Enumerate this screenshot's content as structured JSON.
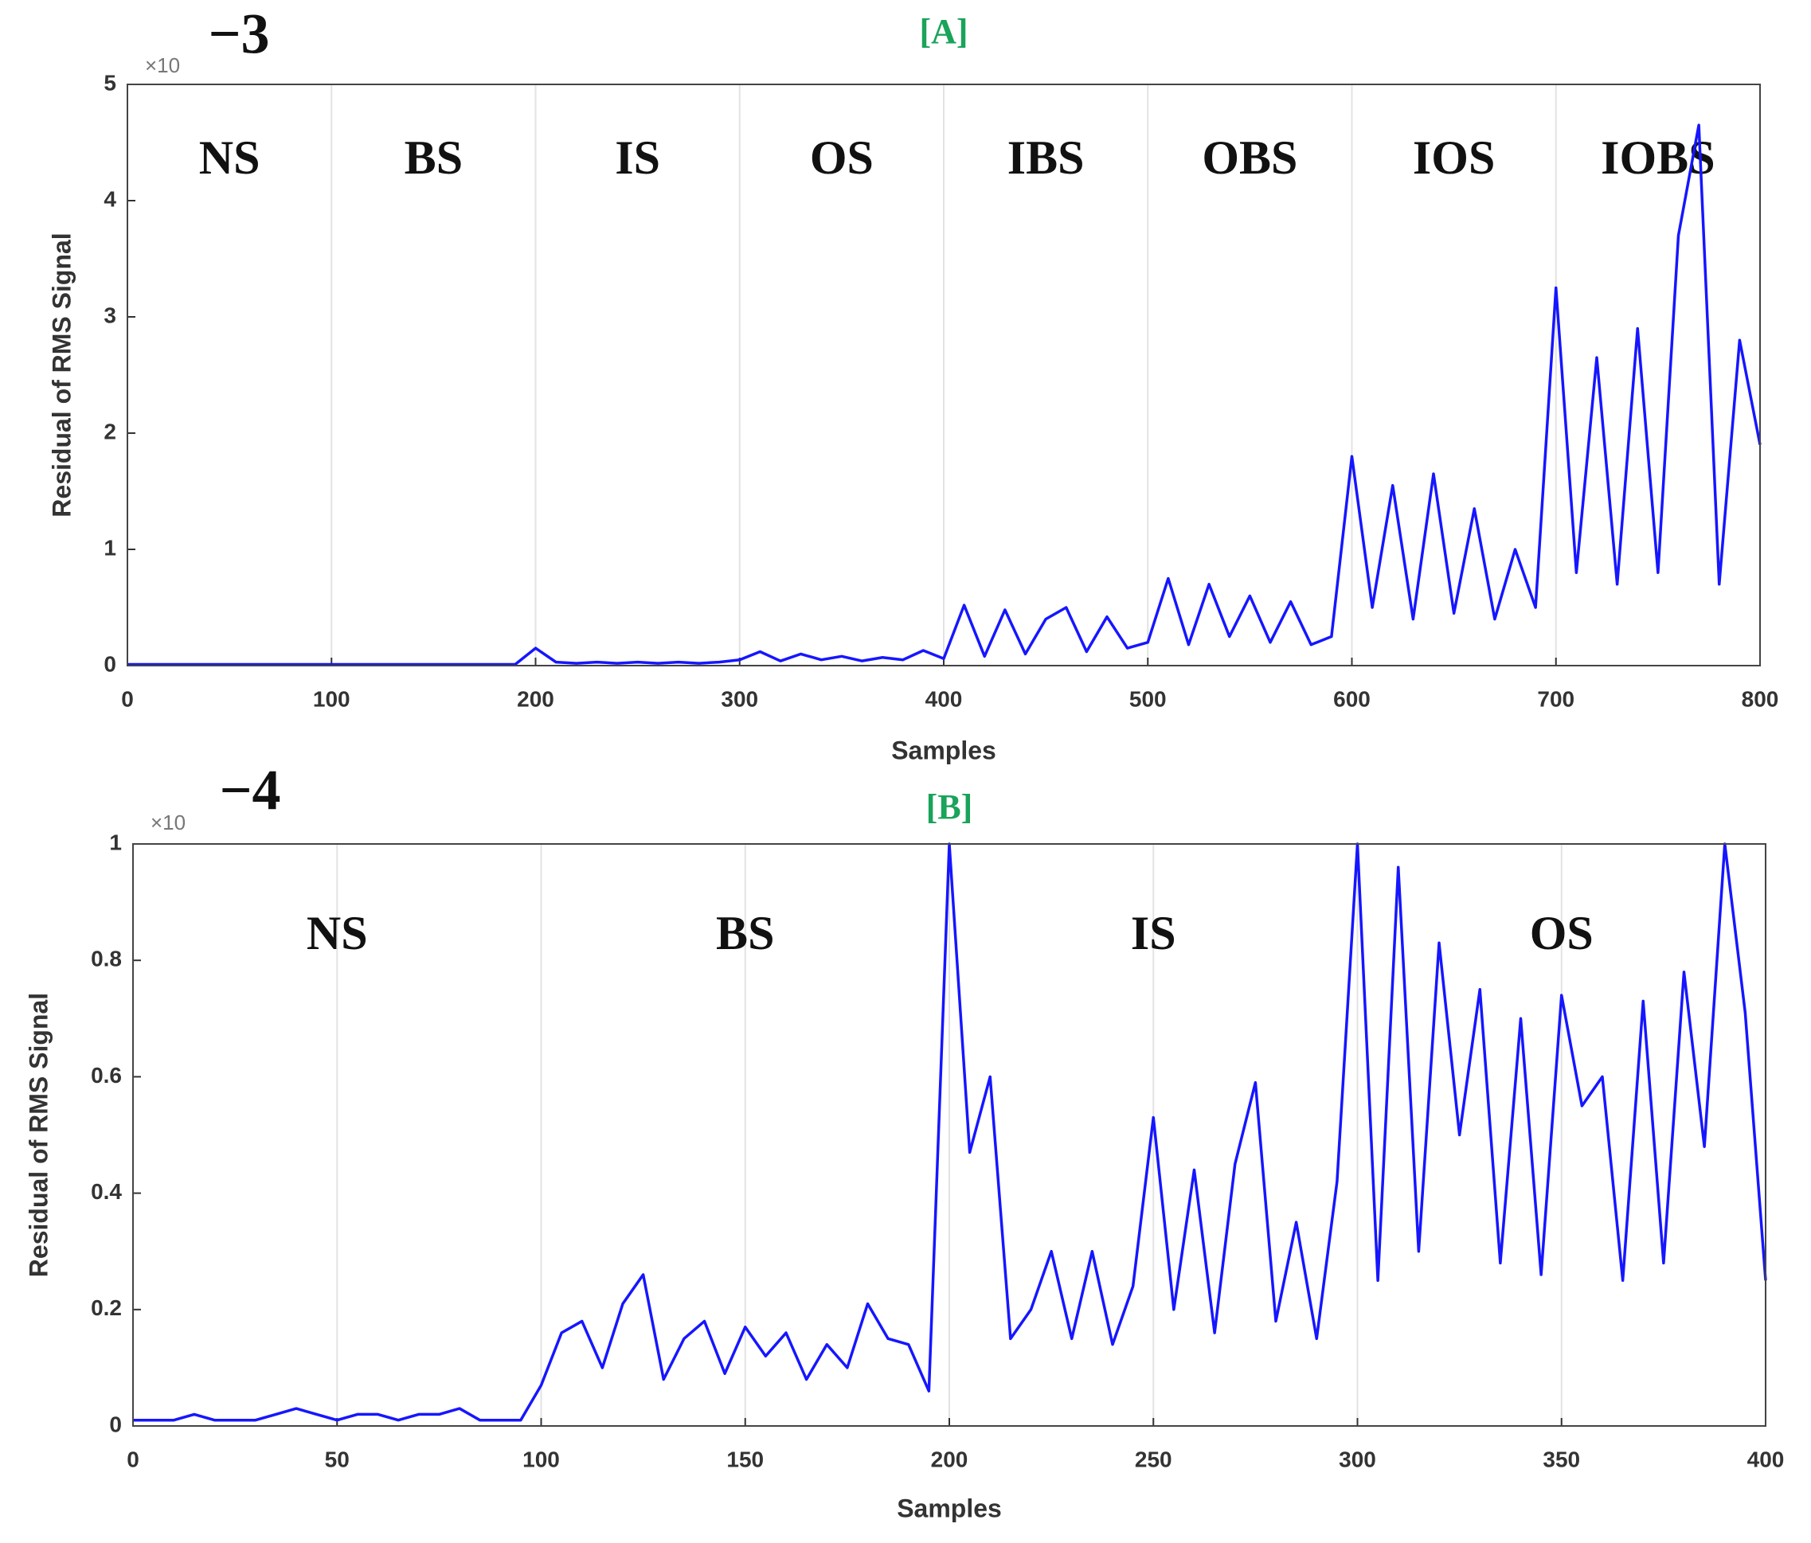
{
  "chart_data": [
    {
      "type": "line",
      "title": "[A]",
      "title_color": "#1aa35a",
      "exponent_base": "×10",
      "exponent": "−3",
      "xlabel": "Samples",
      "ylabel": "Residual of RMS Signal",
      "annotations": [
        "NS",
        "BS",
        "IS",
        "OS",
        "IBS",
        "OBS",
        "IOS",
        "IOBS"
      ],
      "xlim": [
        0,
        800
      ],
      "xticks": [
        0,
        100,
        200,
        300,
        400,
        500,
        600,
        700,
        800
      ],
      "ylim": [
        0,
        5
      ],
      "yticks": [
        0,
        1,
        2,
        3,
        4,
        5
      ],
      "grid": "x",
      "x": [
        0,
        10,
        20,
        30,
        40,
        50,
        60,
        70,
        80,
        90,
        100,
        110,
        120,
        130,
        140,
        150,
        160,
        170,
        180,
        190,
        200,
        210,
        220,
        230,
        240,
        250,
        260,
        270,
        280,
        290,
        300,
        310,
        320,
        330,
        340,
        350,
        360,
        370,
        380,
        390,
        400,
        410,
        420,
        430,
        440,
        450,
        460,
        470,
        480,
        490,
        500,
        510,
        520,
        530,
        540,
        550,
        560,
        570,
        580,
        590,
        600,
        610,
        620,
        630,
        640,
        650,
        660,
        670,
        680,
        690,
        700,
        710,
        720,
        730,
        740,
        750,
        760,
        770,
        780,
        790,
        800
      ],
      "series": [
        {
          "name": "Residual",
          "color": "#1616ff",
          "values": [
            0.01,
            0.01,
            0.01,
            0.01,
            0.01,
            0.01,
            0.01,
            0.01,
            0.01,
            0.01,
            0.01,
            0.01,
            0.01,
            0.01,
            0.01,
            0.01,
            0.01,
            0.01,
            0.01,
            0.01,
            0.15,
            0.03,
            0.02,
            0.03,
            0.02,
            0.03,
            0.02,
            0.03,
            0.02,
            0.03,
            0.05,
            0.12,
            0.04,
            0.1,
            0.05,
            0.08,
            0.04,
            0.07,
            0.05,
            0.13,
            0.06,
            0.52,
            0.08,
            0.48,
            0.1,
            0.4,
            0.5,
            0.12,
            0.42,
            0.15,
            0.2,
            0.75,
            0.18,
            0.7,
            0.25,
            0.6,
            0.2,
            0.55,
            0.18,
            0.25,
            1.8,
            0.5,
            1.55,
            0.4,
            1.65,
            0.45,
            1.35,
            0.4,
            1.0,
            0.5,
            3.25,
            0.8,
            2.65,
            0.7,
            2.9,
            0.8,
            3.7,
            4.65,
            0.7,
            2.8,
            1.9
          ]
        }
      ]
    },
    {
      "type": "line",
      "title": "[B]",
      "title_color": "#1aa35a",
      "exponent_base": "×10",
      "exponent": "−4",
      "xlabel": "Samples",
      "ylabel": "Residual of RMS Signal",
      "annotations": [
        "NS",
        "BS",
        "IS",
        "OS"
      ],
      "xlim": [
        0,
        400
      ],
      "xticks": [
        0,
        50,
        100,
        150,
        200,
        250,
        300,
        350,
        400
      ],
      "ylim": [
        0,
        1
      ],
      "yticks": [
        0,
        0.2,
        0.4,
        0.6,
        0.8,
        1
      ],
      "grid": "x",
      "x": [
        0,
        5,
        10,
        15,
        20,
        25,
        30,
        35,
        40,
        45,
        50,
        55,
        60,
        65,
        70,
        75,
        80,
        85,
        90,
        95,
        100,
        105,
        110,
        115,
        120,
        125,
        130,
        135,
        140,
        145,
        150,
        155,
        160,
        165,
        170,
        175,
        180,
        185,
        190,
        195,
        200,
        205,
        210,
        215,
        220,
        225,
        230,
        235,
        240,
        245,
        250,
        255,
        260,
        265,
        270,
        275,
        280,
        285,
        290,
        295,
        300,
        305,
        310,
        315,
        320,
        325,
        330,
        335,
        340,
        345,
        350,
        355,
        360,
        365,
        370,
        375,
        380,
        385,
        390,
        395,
        400
      ],
      "series": [
        {
          "name": "Residual",
          "color": "#1616ff",
          "values": [
            0.01,
            0.01,
            0.01,
            0.02,
            0.01,
            0.01,
            0.01,
            0.02,
            0.03,
            0.02,
            0.01,
            0.02,
            0.02,
            0.01,
            0.02,
            0.02,
            0.03,
            0.01,
            0.01,
            0.01,
            0.07,
            0.16,
            0.18,
            0.1,
            0.21,
            0.26,
            0.08,
            0.15,
            0.18,
            0.09,
            0.17,
            0.12,
            0.16,
            0.08,
            0.14,
            0.1,
            0.21,
            0.15,
            0.14,
            0.06,
            1.0,
            0.47,
            0.6,
            0.15,
            0.2,
            0.3,
            0.15,
            0.3,
            0.14,
            0.24,
            0.53,
            0.2,
            0.44,
            0.16,
            0.45,
            0.59,
            0.18,
            0.35,
            0.15,
            0.42,
            1.0,
            0.25,
            0.96,
            0.3,
            0.83,
            0.5,
            0.75,
            0.28,
            0.7,
            0.26,
            0.74,
            0.55,
            0.6,
            0.25,
            0.73,
            0.28,
            0.78,
            0.48,
            1.0,
            0.71,
            0.25
          ]
        }
      ]
    }
  ]
}
